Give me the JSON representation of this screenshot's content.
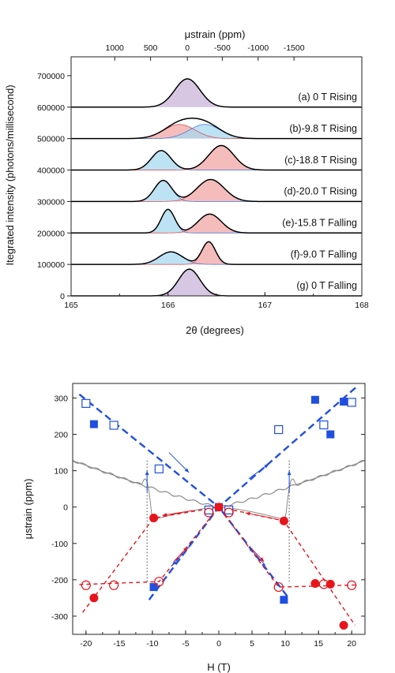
{
  "chart_data": [
    {
      "type": "area",
      "xlabel": "2θ (degrees)",
      "ylabel": "Itegrated intensity (photons/millisecond)",
      "top_axis_label": "μstrain (ppm)",
      "xlim": [
        165,
        168
      ],
      "ylim": [
        0,
        760000
      ],
      "x_ticks": [
        165,
        166,
        167,
        168
      ],
      "x_tick_labels": [
        "165",
        "166",
        "167",
        "168"
      ],
      "y_ticks": [
        0,
        100000,
        200000,
        300000,
        400000,
        500000,
        600000,
        700000
      ],
      "y_tick_labels": [
        "0",
        "100000",
        "200000",
        "300000",
        "400000",
        "500000",
        "600000",
        "700000"
      ],
      "top_ticks": [
        {
          "x": 165.45,
          "label": "1000"
        },
        {
          "x": 165.82,
          "label": "500"
        },
        {
          "x": 166.2,
          "label": "0"
        },
        {
          "x": 166.56,
          "label": "-500"
        },
        {
          "x": 166.93,
          "label": "-1000"
        },
        {
          "x": 167.3,
          "label": "-1500"
        }
      ],
      "colors": {
        "purple": "#c9b4d9",
        "blue": "#a7d8ef",
        "red": "#f2a5a5",
        "outline": "#000000",
        "baseline": "#333333"
      },
      "traces": [
        {
          "label": "(a) 0 T Rising",
          "baseline": 600000,
          "peaks": [
            {
              "color": "purple",
              "center": 166.2,
              "amp": 90000,
              "width": 0.13
            }
          ]
        },
        {
          "label": "(b)-9.8 T Rising",
          "baseline": 500000,
          "peaks": [
            {
              "color": "red",
              "center": 166.12,
              "amp": 45000,
              "width": 0.16
            },
            {
              "color": "blue",
              "center": 166.38,
              "amp": 45000,
              "width": 0.16
            }
          ]
        },
        {
          "label": "(c)-18.8 T Rising",
          "baseline": 400000,
          "peaks": [
            {
              "color": "blue",
              "center": 165.93,
              "amp": 62000,
              "width": 0.1
            },
            {
              "color": "red",
              "center": 166.55,
              "amp": 78000,
              "width": 0.13
            }
          ]
        },
        {
          "label": "(d)-20.0 T Rising",
          "baseline": 300000,
          "peaks": [
            {
              "color": "blue",
              "center": 165.95,
              "amp": 67000,
              "width": 0.09
            },
            {
              "color": "red",
              "center": 166.44,
              "amp": 70000,
              "width": 0.14
            }
          ]
        },
        {
          "label": "(e)-15.8 T Falling",
          "baseline": 200000,
          "peaks": [
            {
              "color": "blue",
              "center": 166.0,
              "amp": 75000,
              "width": 0.07
            },
            {
              "color": "red",
              "center": 166.43,
              "amp": 60000,
              "width": 0.12
            }
          ]
        },
        {
          "label": "(f)-9.0 T Falling",
          "baseline": 100000,
          "peaks": [
            {
              "color": "blue",
              "center": 166.03,
              "amp": 40000,
              "width": 0.12
            },
            {
              "color": "red",
              "center": 166.42,
              "amp": 72000,
              "width": 0.07
            }
          ]
        },
        {
          "label": "(g) 0 T Falling",
          "baseline": 0,
          "peaks": [
            {
              "color": "purple",
              "center": 166.22,
              "amp": 85000,
              "width": 0.11
            }
          ]
        }
      ]
    },
    {
      "type": "scatter",
      "xlabel": "H (T)",
      "ylabel": "μstrain (ppm)",
      "xlim": [
        -22,
        22
      ],
      "ylim": [
        -350,
        340
      ],
      "x_ticks": [
        -20,
        -15,
        -10,
        -5,
        0,
        5,
        10,
        15,
        20
      ],
      "x_tick_labels": [
        "-20",
        "-15",
        "-10",
        "-5",
        "0",
        "5",
        "10",
        "15",
        "20"
      ],
      "y_ticks": [
        -300,
        -200,
        -100,
        0,
        100,
        200,
        300
      ],
      "y_tick_labels": [
        "-300",
        "-200",
        "-100",
        "0",
        "100",
        "200",
        "300"
      ],
      "colors": {
        "blue": "#1f4fe0",
        "red": "#e8141b",
        "gray": "#8a8a8a",
        "vline": "#444444"
      },
      "series": [
        {
          "marker": "square-filled",
          "color": "blue",
          "points": [
            [
              -18.8,
              228
            ],
            [
              14.5,
              295
            ],
            [
              16.8,
              200
            ],
            [
              18.8,
              290
            ],
            [
              -9.8,
              -220
            ],
            [
              9.8,
              -255
            ],
            [
              0,
              0
            ]
          ]
        },
        {
          "marker": "square-open",
          "color": "blue",
          "points": [
            [
              -20,
              285
            ],
            [
              -15.8,
              225
            ],
            [
              -9.0,
              105
            ],
            [
              9.0,
              213
            ],
            [
              15.8,
              226
            ],
            [
              20,
              288
            ],
            [
              -1.5,
              -8
            ],
            [
              1.5,
              -8
            ]
          ]
        },
        {
          "marker": "circle-filled",
          "color": "red",
          "points": [
            [
              -18.8,
              -250
            ],
            [
              -9.8,
              -30
            ],
            [
              9.8,
              -38
            ],
            [
              14.5,
              -210
            ],
            [
              16.8,
              -212
            ],
            [
              18.8,
              -325
            ],
            [
              0,
              0
            ]
          ]
        },
        {
          "marker": "circle-open",
          "color": "red",
          "points": [
            [
              -20,
              -215
            ],
            [
              -15.8,
              -215
            ],
            [
              -9.0,
              -205
            ],
            [
              -1.5,
              -15
            ],
            [
              1.5,
              -15
            ],
            [
              9.0,
              -220
            ],
            [
              15.8,
              -212
            ],
            [
              20,
              -215
            ]
          ]
        }
      ],
      "dashed_lines": [
        {
          "color": "blue",
          "points": [
            [
              -21,
              310
            ],
            [
              0,
              0
            ],
            [
              21,
              335
            ]
          ]
        },
        {
          "color": "blue",
          "points": [
            [
              -10.5,
              -255
            ],
            [
              0,
              0
            ],
            [
              10.5,
              -250
            ]
          ]
        },
        {
          "color": "red",
          "points": [
            [
              -20.5,
              -290
            ],
            [
              -9.8,
              -30
            ],
            [
              0,
              0
            ],
            [
              9.8,
              -38
            ],
            [
              20.5,
              -325
            ]
          ]
        },
        {
          "color": "red",
          "points": [
            [
              -21,
              -213
            ],
            [
              -9.0,
              -205
            ],
            [
              0,
              0
            ],
            [
              9.0,
              -220
            ],
            [
              21,
              -214
            ]
          ]
        }
      ],
      "vertical_dotted": [
        -10.8,
        10.6
      ]
    }
  ]
}
